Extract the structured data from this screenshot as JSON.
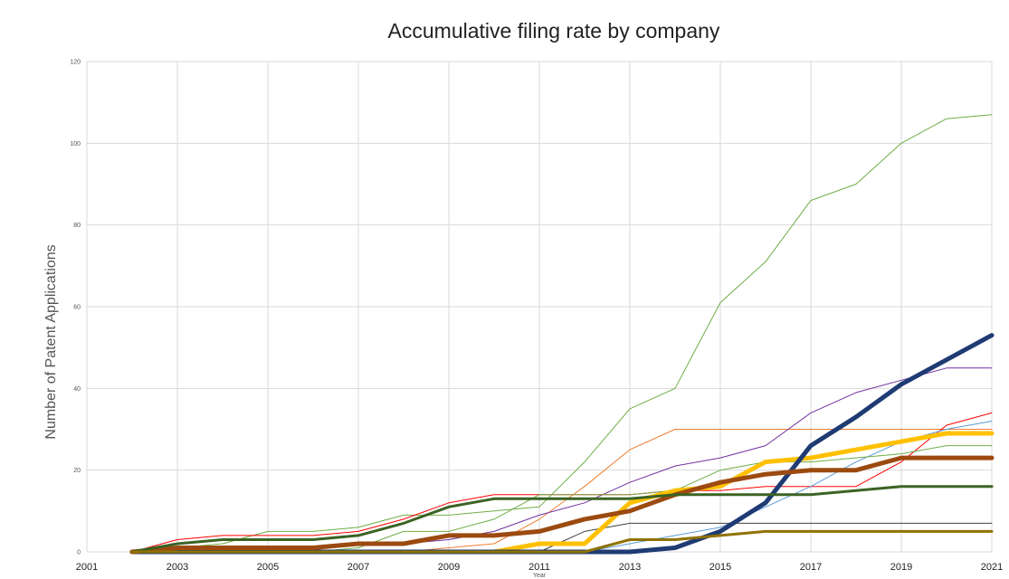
{
  "chart_data": {
    "type": "line",
    "title": "Accumulative filing rate by company",
    "xlabel": "Year",
    "ylabel": "Number of Patent Applications",
    "xlim": [
      2001,
      2021
    ],
    "ylim": [
      0,
      120
    ],
    "x_ticks": [
      "2001",
      "2003",
      "2005",
      "2007",
      "2009",
      "2011",
      "2013",
      "2015",
      "2017",
      "2019",
      "2021"
    ],
    "y_ticks": [
      "0",
      "20",
      "40",
      "60",
      "80",
      "100",
      "120"
    ],
    "grid": true,
    "legend": "none",
    "x": [
      2002,
      2003,
      2004,
      2005,
      2006,
      2007,
      2008,
      2009,
      2010,
      2011,
      2012,
      2013,
      2014,
      2015,
      2016,
      2017,
      2018,
      2019,
      2020,
      2021
    ],
    "series": [
      {
        "color": "#70ad47",
        "width": 1,
        "values": [
          0,
          1,
          2,
          5,
          5,
          6,
          9,
          9,
          10,
          11,
          22,
          35,
          40,
          61,
          71,
          86,
          90,
          100,
          106,
          107
        ]
      },
      {
        "color": "#ed7d31",
        "width": 1,
        "values": [
          0,
          0,
          0,
          0,
          0,
          0,
          0,
          1,
          2,
          8,
          16,
          25,
          30,
          30,
          30,
          30,
          30,
          30,
          30,
          30
        ]
      },
      {
        "color": "#7030a0",
        "width": 1,
        "values": [
          0,
          0,
          1,
          1,
          1,
          2,
          2,
          3,
          5,
          9,
          12,
          17,
          21,
          23,
          26,
          34,
          39,
          42,
          45,
          45
        ]
      },
      {
        "color": "#ff0000",
        "width": 1,
        "values": [
          0,
          3,
          4,
          4,
          4,
          5,
          8,
          12,
          14,
          14,
          14,
          14,
          15,
          15,
          16,
          16,
          16,
          22,
          31,
          34
        ]
      },
      {
        "color": "#5b9bd5",
        "width": 1,
        "values": [
          0,
          0,
          0,
          0,
          0,
          0,
          0,
          0,
          0,
          0,
          0,
          2,
          4,
          6,
          11,
          16,
          22,
          27,
          30,
          32
        ]
      },
      {
        "color": "#70ad47",
        "width": 1,
        "values": [
          0,
          0,
          0,
          0,
          0,
          1,
          5,
          5,
          8,
          14,
          14,
          14,
          15,
          20,
          22,
          22,
          23,
          24,
          26,
          26
        ]
      },
      {
        "color": "#404040",
        "width": 1,
        "values": [
          0,
          0,
          0,
          0,
          0,
          0,
          0,
          0,
          0,
          0,
          5,
          7,
          7,
          7,
          7,
          7,
          7,
          7,
          7,
          7
        ]
      },
      {
        "color": "#ffc000",
        "width": 5,
        "values": [
          0,
          0,
          0,
          0,
          0,
          0,
          0,
          0,
          0,
          2,
          2,
          12,
          15,
          16,
          22,
          23,
          25,
          27,
          29,
          29
        ]
      },
      {
        "color": "#1f3b73",
        "width": 5,
        "values": [
          0,
          0,
          0,
          0,
          0,
          0,
          0,
          0,
          0,
          0,
          0,
          0,
          1,
          5,
          12,
          26,
          33,
          41,
          47,
          53
        ]
      },
      {
        "color": "#9c4a10",
        "width": 5,
        "values": [
          0,
          1,
          1,
          1,
          1,
          2,
          2,
          4,
          4,
          5,
          8,
          10,
          14,
          17,
          19,
          20,
          20,
          23,
          23,
          23
        ]
      },
      {
        "color": "#3b6323",
        "width": 3,
        "values": [
          0,
          2,
          3,
          3,
          3,
          4,
          7,
          11,
          13,
          13,
          13,
          13,
          14,
          14,
          14,
          14,
          15,
          16,
          16,
          16
        ]
      },
      {
        "color": "#8f7204",
        "width": 3,
        "values": [
          0,
          0,
          0,
          0,
          0,
          0,
          0,
          0,
          0,
          0,
          0,
          3,
          3,
          4,
          5,
          5,
          5,
          5,
          5,
          5
        ]
      }
    ]
  }
}
